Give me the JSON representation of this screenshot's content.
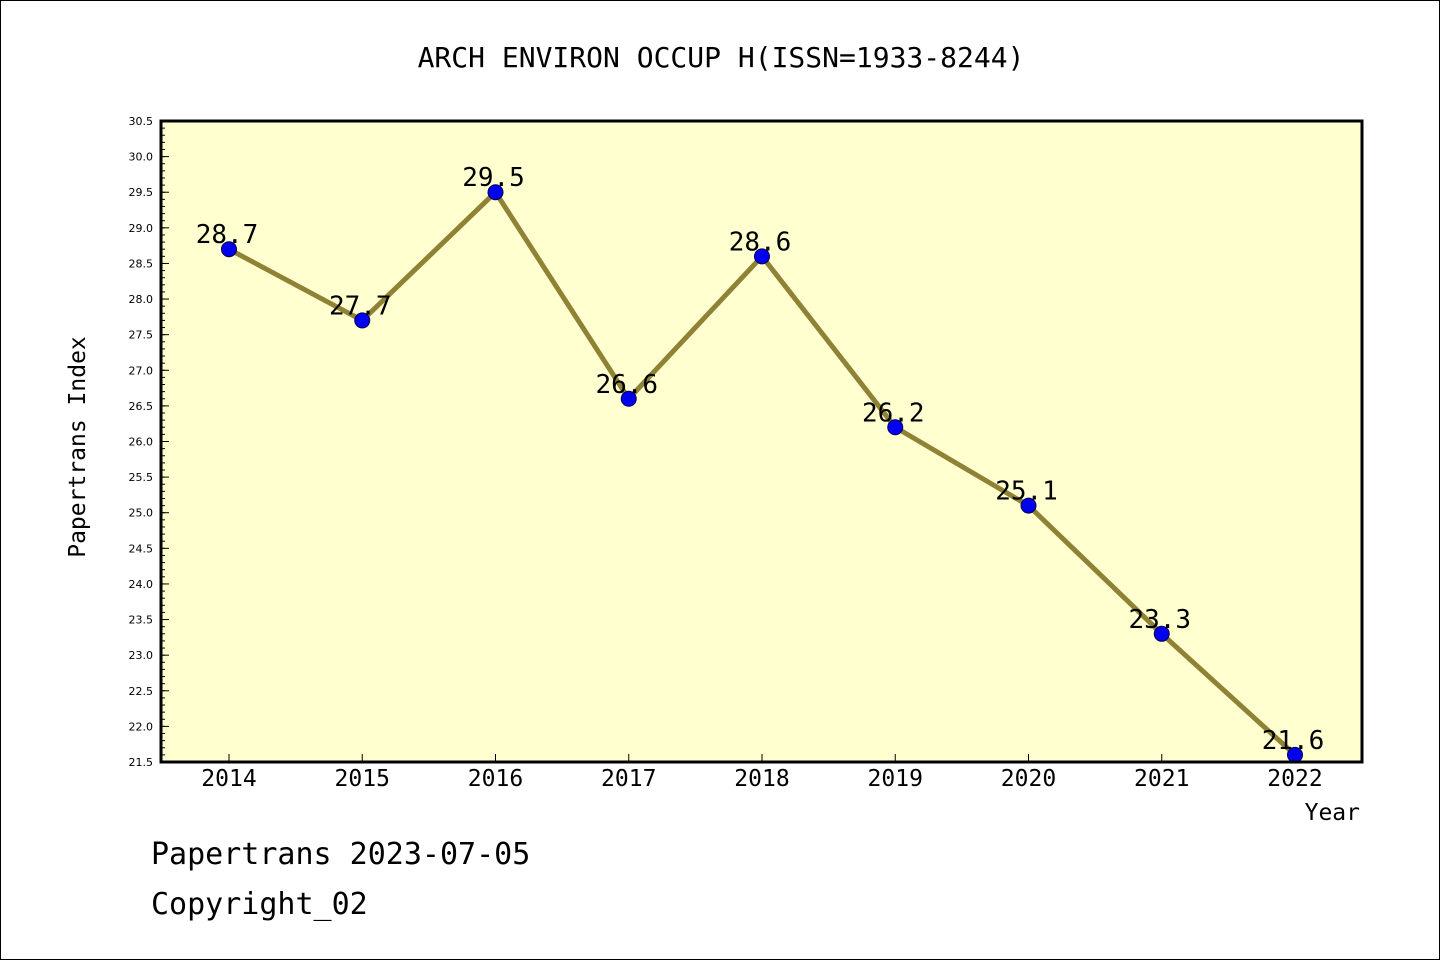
{
  "chart_data": {
    "type": "line",
    "title": "ARCH ENVIRON OCCUP H(ISSN=1933-8244)",
    "xlabel": "Year",
    "ylabel": "Papertrans Index",
    "categories": [
      "2014",
      "2015",
      "2016",
      "2017",
      "2018",
      "2019",
      "2020",
      "2021",
      "2022"
    ],
    "values": [
      28.7,
      27.7,
      29.5,
      26.6,
      28.6,
      26.2,
      25.1,
      23.3,
      21.6
    ],
    "data_labels": [
      "28.7",
      "27.7",
      "29.5",
      "26.6",
      "28.6",
      "26.2",
      "25.1",
      "23.3",
      "21.6"
    ],
    "ylim": [
      21.5,
      30.5
    ],
    "yticks": [
      "21.5",
      "22.0",
      "22.5",
      "23.0",
      "23.5",
      "24.0",
      "24.5",
      "25.0",
      "25.5",
      "26.0",
      "26.5",
      "27.0",
      "27.5",
      "28.0",
      "28.5",
      "29.0",
      "29.5",
      "30.0",
      "30.5"
    ],
    "grid": false,
    "colors": {
      "plot_background": "#ffffd0",
      "line": "#8f8235",
      "marker": "#0000ee"
    }
  },
  "footer": {
    "date_line": "Papertrans 2023-07-05",
    "copyright_line": "Copyright_02"
  }
}
